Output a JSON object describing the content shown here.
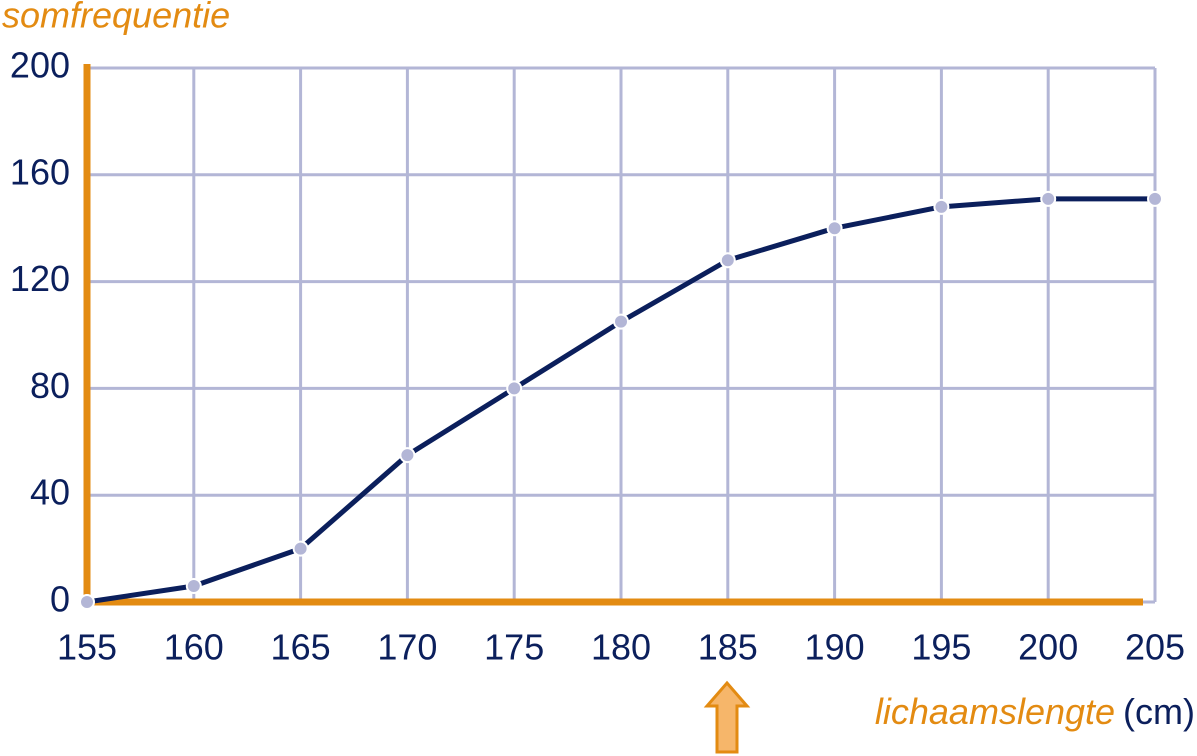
{
  "chart_data": {
    "type": "line",
    "ylabel": "somfrequentie",
    "xlabel": "lichaamslengte",
    "xunit": "(cm)",
    "x": [
      155,
      160,
      165,
      170,
      175,
      180,
      185,
      190,
      195,
      200,
      205
    ],
    "series": [
      {
        "color": "#0b1f5c",
        "marker_color": "#b3b6d6",
        "values": [
          0,
          6,
          20,
          55,
          80,
          105,
          128,
          140,
          148,
          151,
          151
        ]
      }
    ],
    "xlim": [
      155,
      205
    ],
    "xticks": [
      155,
      160,
      165,
      170,
      175,
      180,
      185,
      190,
      195,
      200,
      205
    ],
    "ylim": [
      0,
      200
    ],
    "yticks": [
      0,
      40,
      80,
      120,
      160,
      200
    ],
    "grid": true,
    "grid_color": "#b3b6d6",
    "axis_color": "#e38b12",
    "label_color": "#e38b12",
    "tick_color": "#0b1f5c"
  }
}
